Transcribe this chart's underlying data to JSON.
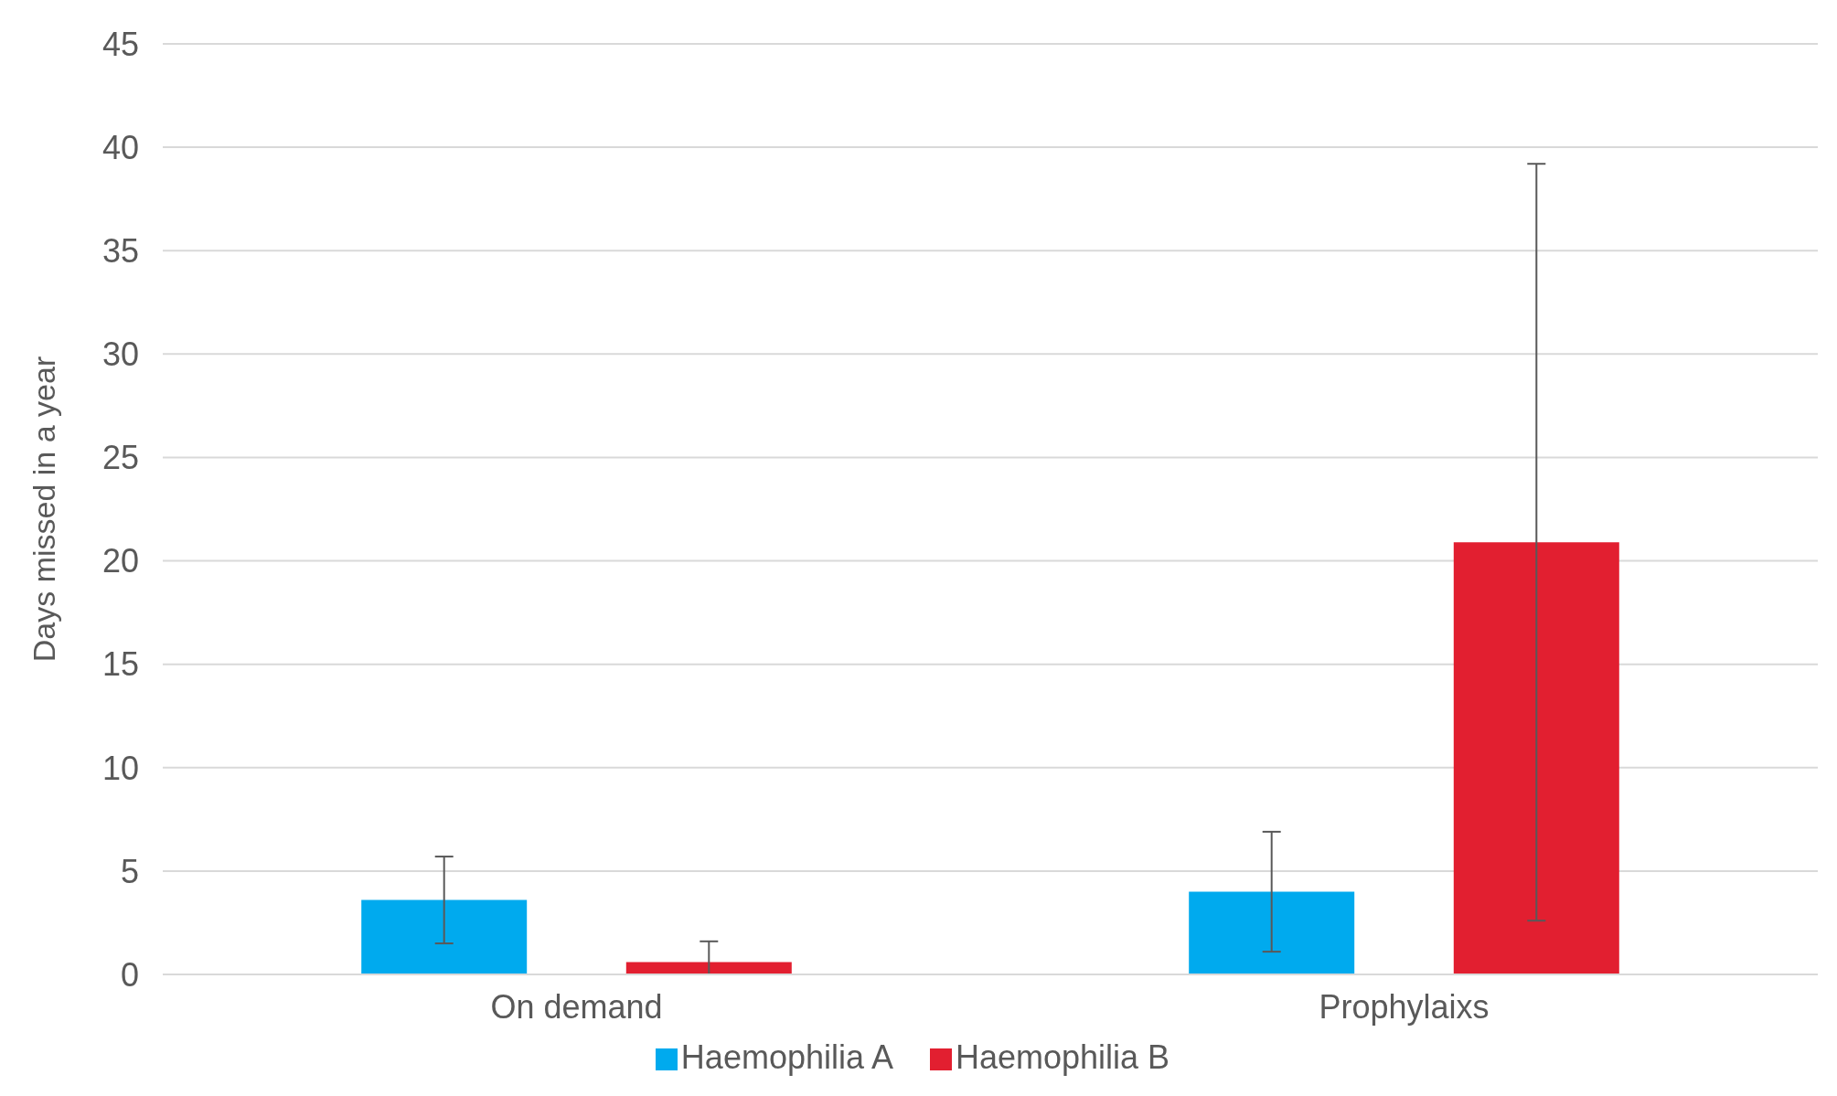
{
  "chart_data": {
    "type": "bar",
    "ylabel": "Days missed in a year",
    "categories": [
      "On demand",
      "Prophylaixs"
    ],
    "series": [
      {
        "name": "Haemophilia A",
        "color": "#00aaee",
        "values": [
          3.6,
          4.0
        ],
        "errors": [
          2.1,
          2.9
        ]
      },
      {
        "name": "Haemophilia B",
        "color": "#e21f30",
        "values": [
          0.6,
          20.9
        ],
        "errors": [
          [
            0,
            1.6
          ],
          18.3
        ]
      }
    ],
    "ylim": [
      0,
      45
    ],
    "yticks": [
      0,
      5,
      10,
      15,
      20,
      25,
      30,
      35,
      40,
      45
    ],
    "grid": "y",
    "legend": "bottom"
  }
}
